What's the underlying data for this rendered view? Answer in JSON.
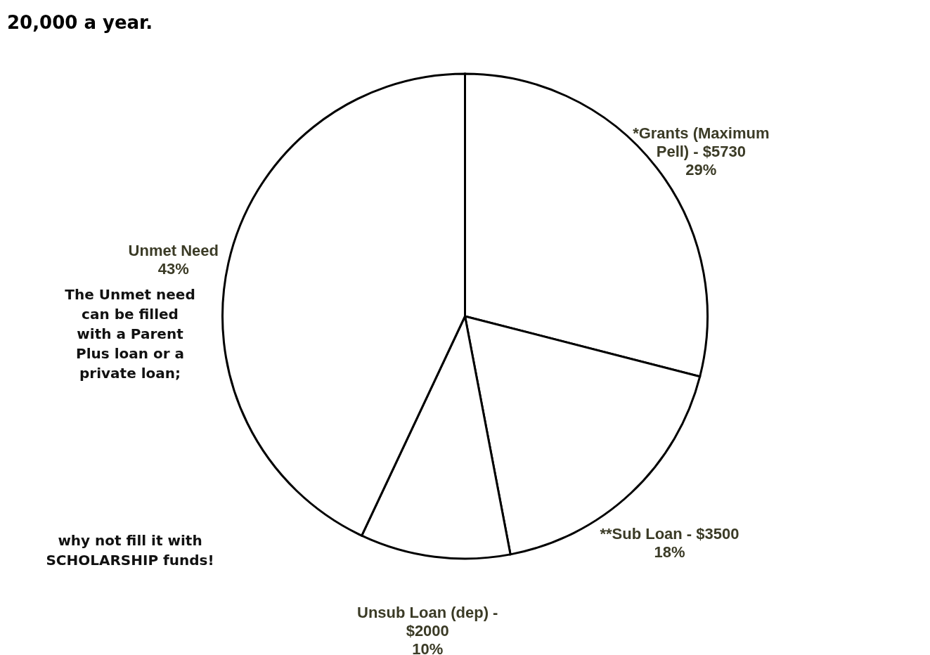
{
  "chart_data": {
    "type": "pie",
    "title": "20,000 a year.",
    "categories": [
      "*Grants (Maximum Pell) - $5730",
      "**Sub Loan - $3500",
      "Unsub Loan (dep) - $2000",
      "Unmet Need"
    ],
    "values": [
      29,
      18,
      10,
      43
    ],
    "value_labels": [
      "29%",
      "18%",
      "10%",
      "43%"
    ],
    "colors": [
      "#ffffff",
      "#ffffff",
      "#ffffff",
      "#ffffff"
    ],
    "annotations": [
      "The Unmet need can be filled with a Parent Plus loan or a private loan;",
      "why not fill it with SCHOLARSHIP funds!"
    ],
    "legend": false
  }
}
